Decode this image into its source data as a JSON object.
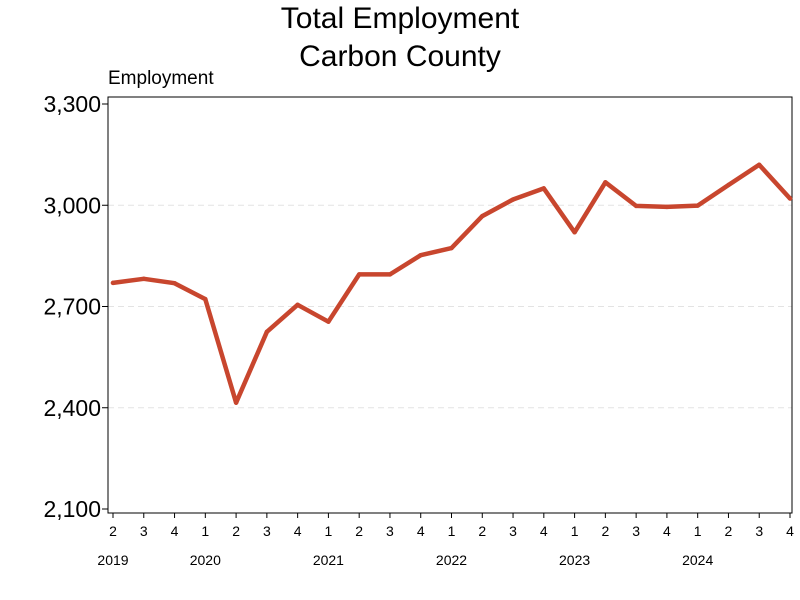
{
  "chart_data": {
    "type": "line",
    "title_lines": [
      "Total Employment",
      "Carbon County"
    ],
    "ylabel": "Employment",
    "xlabel": "",
    "ylim": [
      2100,
      3300
    ],
    "y_ticks": [
      2100,
      2400,
      2700,
      3000,
      3300
    ],
    "y_tick_labels": [
      "2,100",
      "2,400",
      "2,700",
      "3,000",
      "3,300"
    ],
    "grid": "horizontal-dashed",
    "line_color": "#C8462E",
    "x_quarters": [
      "2",
      "3",
      "4",
      "1",
      "2",
      "3",
      "4",
      "1",
      "2",
      "3",
      "4",
      "1",
      "2",
      "3",
      "4",
      "1",
      "2",
      "3",
      "4",
      "1",
      "2",
      "3",
      "4"
    ],
    "x_years": [
      {
        "label": "2019",
        "index": 0
      },
      {
        "label": "2020",
        "index": 3
      },
      {
        "label": "2021",
        "index": 7
      },
      {
        "label": "2022",
        "index": 11
      },
      {
        "label": "2023",
        "index": 15
      },
      {
        "label": "2024",
        "index": 19
      }
    ],
    "series": [
      {
        "values": [
          2770,
          2782,
          2769,
          2722,
          2415,
          2625,
          2705,
          2655,
          2795,
          2795,
          2852,
          2873,
          2968,
          3017,
          3050,
          2920,
          3068,
          2998,
          2995,
          2999,
          3060,
          3120,
          3020
        ]
      }
    ]
  }
}
